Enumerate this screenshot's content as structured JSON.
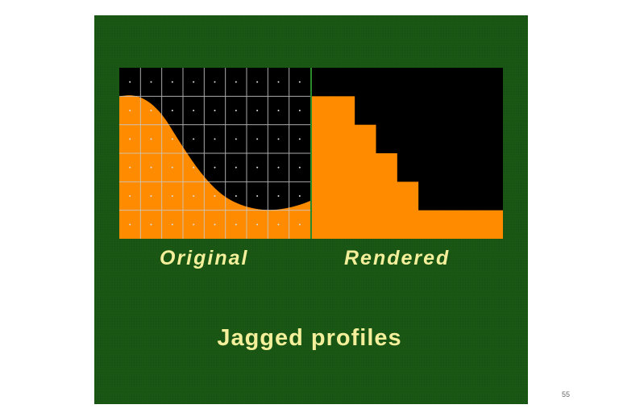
{
  "slide": {
    "label_original": "Original",
    "label_rendered": "Rendered",
    "caption": "Jagged profiles",
    "page_number": "55"
  },
  "colors": {
    "slide_bg": "#1a5714",
    "fill": "#ff8c00",
    "panel_bg": "#000000",
    "text": "#f3ef9a",
    "grid": "#c8c8c8"
  },
  "grid": {
    "columns": 9,
    "rows": 6
  },
  "rendered_column_heights_rows": [
    5,
    5,
    4,
    3,
    2,
    1,
    1,
    1,
    1
  ]
}
